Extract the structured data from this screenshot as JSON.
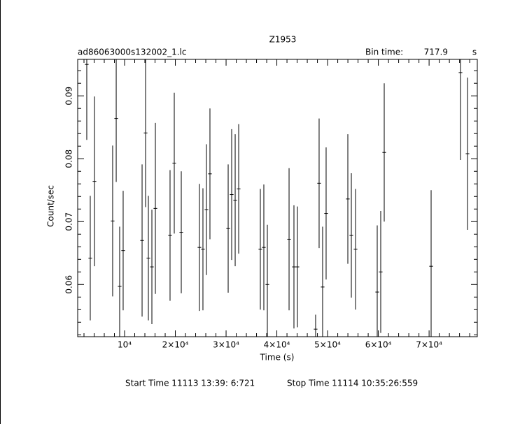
{
  "chart_data": {
    "type": "errorbar",
    "title": "Z1953",
    "file_label": "ad86063000s132002_1.lc",
    "bin_time_label": "Bin time:",
    "bin_time": 717.9,
    "bin_time_unit": "s",
    "x_label": "Time (s)",
    "y_label": "Count/sec",
    "start_time": "Start Time 11113 13:39: 6:721",
    "stop_time": "Stop Time 11114 10:35:26:559",
    "color": "#000000",
    "xlim": [
      760,
      79500
    ],
    "ylim": [
      0.0517,
      0.0958
    ],
    "xticks": [
      {
        "value": 10000,
        "label": "10⁴"
      },
      {
        "value": 20000,
        "label": "2×10⁴"
      },
      {
        "value": 30000,
        "label": "3×10⁴"
      },
      {
        "value": 40000,
        "label": "4×10⁴"
      },
      {
        "value": 50000,
        "label": "5×10⁴"
      },
      {
        "value": 60000,
        "label": "6×10⁴"
      },
      {
        "value": 70000,
        "label": "7×10⁴"
      }
    ],
    "yticks": [
      0.06,
      0.07,
      0.08,
      0.09
    ],
    "x": [
      2550,
      3240,
      4070,
      7650,
      8350,
      9030,
      9720,
      13450,
      14140,
      14690,
      15380,
      16070,
      18960,
      19790,
      21170,
      24750,
      25440,
      26130,
      26820,
      30410,
      31100,
      31790,
      32480,
      36750,
      37440,
      38130,
      42410,
      43370,
      44060,
      47640,
      48330,
      49020,
      49710,
      53990,
      54680,
      55510,
      59780,
      60470,
      61160,
      70400,
      76190,
      77570
    ],
    "values": [
      0.095,
      0.0642,
      0.0764,
      0.0701,
      0.0864,
      0.0597,
      0.0654,
      0.067,
      0.0841,
      0.0642,
      0.0628,
      0.0721,
      0.0678,
      0.0793,
      0.0683,
      0.0659,
      0.0656,
      0.0719,
      0.0776,
      0.0689,
      0.0743,
      0.0734,
      0.0752,
      0.0656,
      0.0659,
      0.06,
      0.0672,
      0.0628,
      0.0628,
      0.0529,
      0.0761,
      0.0596,
      0.0713,
      0.0736,
      0.0678,
      0.0656,
      0.0588,
      0.062,
      0.081,
      0.0629,
      0.0937,
      0.0808
    ],
    "errors": [
      0.012,
      0.0099,
      0.0135,
      0.012,
      0.0101,
      0.0095,
      0.0095,
      0.0121,
      0.0118,
      0.0099,
      0.0091,
      0.0136,
      0.0104,
      0.0112,
      0.0097,
      0.0101,
      0.0097,
      0.0104,
      0.0104,
      0.0102,
      0.0104,
      0.0105,
      0.0103,
      0.0096,
      0.01,
      0.0095,
      0.0113,
      0.0098,
      0.0096,
      0.0023,
      0.0103,
      0.0096,
      0.0105,
      0.0103,
      0.0099,
      0.0096,
      0.0106,
      0.0097,
      0.011,
      0.0121,
      0.0139,
      0.0121
    ]
  }
}
